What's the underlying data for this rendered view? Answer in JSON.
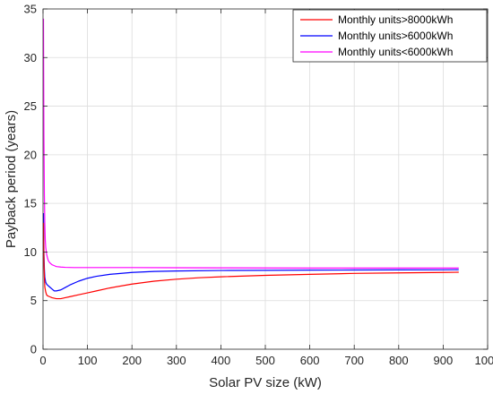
{
  "chart_data": {
    "type": "line",
    "title": "",
    "xlabel": "Solar PV size (kW)",
    "ylabel": "Payback period (years)",
    "xlim": [
      0,
      1000
    ],
    "ylim": [
      0,
      35
    ],
    "xticks": [
      0,
      100,
      200,
      300,
      400,
      500,
      600,
      700,
      800,
      900,
      1000
    ],
    "yticks": [
      0,
      5,
      10,
      15,
      20,
      25,
      30,
      35
    ],
    "grid": true,
    "legend_position": "top-right",
    "series": [
      {
        "name": "Monthly units>8000kWh",
        "color": "#ff0000",
        "x": [
          1,
          2,
          3,
          4,
          6,
          8,
          10,
          15,
          20,
          30,
          40,
          50,
          60,
          80,
          100,
          120,
          150,
          200,
          250,
          300,
          350,
          400,
          500,
          600,
          700,
          800,
          900,
          935
        ],
        "y": [
          13.0,
          9.0,
          7.4,
          6.4,
          5.9,
          5.6,
          5.5,
          5.4,
          5.3,
          5.2,
          5.2,
          5.3,
          5.4,
          5.6,
          5.8,
          6.0,
          6.3,
          6.7,
          7.0,
          7.2,
          7.35,
          7.45,
          7.6,
          7.7,
          7.8,
          7.85,
          7.9,
          7.92
        ]
      },
      {
        "name": "Monthly units>6000kWh",
        "color": "#0000ff",
        "x": [
          1,
          2,
          3,
          4,
          6,
          8,
          10,
          15,
          20,
          25,
          30,
          40,
          50,
          60,
          80,
          100,
          120,
          150,
          200,
          250,
          300,
          400,
          500,
          600,
          700,
          800,
          900,
          935
        ],
        "y": [
          14.0,
          10.0,
          8.3,
          7.4,
          6.9,
          6.7,
          6.6,
          6.4,
          6.2,
          6.0,
          6.0,
          6.1,
          6.35,
          6.6,
          7.0,
          7.3,
          7.5,
          7.7,
          7.9,
          8.0,
          8.05,
          8.1,
          8.12,
          8.14,
          8.15,
          8.16,
          8.17,
          8.18
        ]
      },
      {
        "name": "Monthly units<6000kWh",
        "color": "#ff00ff",
        "x": [
          1,
          1.5,
          2,
          3,
          4,
          5,
          6,
          8,
          10,
          12,
          15,
          20,
          25,
          30,
          40,
          50,
          70,
          100,
          150,
          200,
          300,
          400,
          500,
          600,
          700,
          800,
          900,
          935
        ],
        "y": [
          34.0,
          28.0,
          22.0,
          16.0,
          13.0,
          11.3,
          10.5,
          9.8,
          9.4,
          9.1,
          8.9,
          8.7,
          8.6,
          8.5,
          8.45,
          8.42,
          8.4,
          8.4,
          8.4,
          8.4,
          8.38,
          8.37,
          8.36,
          8.35,
          8.35,
          8.35,
          8.35,
          8.35
        ]
      }
    ]
  }
}
